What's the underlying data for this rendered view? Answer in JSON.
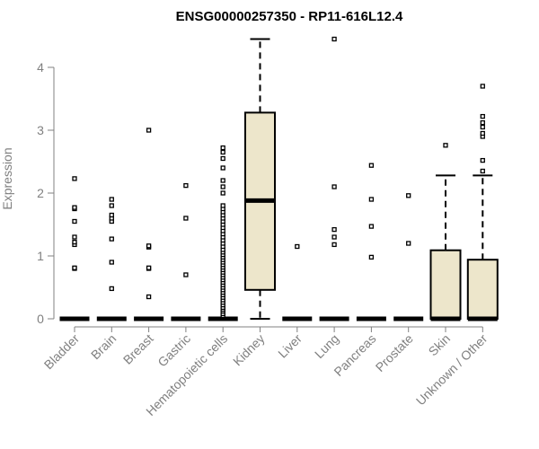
{
  "chart_data": {
    "type": "boxplot",
    "title": "ENSG00000257350 - RP11-616L12.4",
    "ylabel": "Expression",
    "xlabel": "",
    "ylim": [
      0,
      4.5
    ],
    "yticks": [
      0,
      1,
      2,
      3,
      4
    ],
    "box_color": "#ede6cb",
    "categories": [
      "Bladder",
      "Brain",
      "Breast",
      "Gastric",
      "Hematopoietic cells",
      "Kidney",
      "Liver",
      "Lung",
      "Pancreas",
      "Prostate",
      "Skin",
      "Unknown / Other"
    ],
    "boxes": [
      {
        "q1": 0,
        "median": 0,
        "q3": 0,
        "whisker_low": 0,
        "whisker_high": 0,
        "outliers": [
          0.8,
          0.81,
          1.18,
          1.22,
          1.3,
          1.55,
          1.75,
          1.77,
          2.23
        ]
      },
      {
        "q1": 0,
        "median": 0,
        "q3": 0,
        "whisker_low": 0,
        "whisker_high": 0,
        "outliers": [
          0.48,
          0.9,
          1.27,
          1.55,
          1.6,
          1.65,
          1.8,
          1.9
        ]
      },
      {
        "q1": 0,
        "median": 0,
        "q3": 0,
        "whisker_low": 0,
        "whisker_high": 0,
        "outliers": [
          0.35,
          0.8,
          0.81,
          1.14,
          1.16,
          3.0
        ]
      },
      {
        "q1": 0,
        "median": 0,
        "q3": 0,
        "whisker_low": 0,
        "whisker_high": 0,
        "outliers": [
          0.7,
          1.6,
          2.12
        ]
      },
      {
        "q1": 0,
        "median": 0,
        "q3": 0,
        "whisker_low": 0,
        "whisker_high": 0,
        "outliers": [
          0.05,
          0.08,
          0.12,
          0.15,
          0.18,
          0.22,
          0.26,
          0.3,
          0.34,
          0.38,
          0.42,
          0.46,
          0.5,
          0.54,
          0.58,
          0.62,
          0.66,
          0.7,
          0.74,
          0.78,
          0.82,
          0.86,
          0.9,
          0.94,
          0.98,
          1.02,
          1.06,
          1.1,
          1.15,
          1.2,
          1.25,
          1.3,
          1.35,
          1.4,
          1.45,
          1.5,
          1.55,
          1.6,
          1.65,
          1.7,
          1.75,
          1.8,
          2.0,
          2.1,
          2.2,
          2.4,
          2.55,
          2.65,
          2.72
        ]
      },
      {
        "q1": 0.46,
        "median": 1.88,
        "q3": 3.28,
        "whisker_low": 0,
        "whisker_high": 4.45,
        "outliers": []
      },
      {
        "q1": 0,
        "median": 0,
        "q3": 0,
        "whisker_low": 0,
        "whisker_high": 0,
        "outliers": [
          1.15
        ]
      },
      {
        "q1": 0,
        "median": 0,
        "q3": 0,
        "whisker_low": 0,
        "whisker_high": 0,
        "outliers": [
          1.18,
          1.3,
          1.42,
          2.1,
          4.45
        ]
      },
      {
        "q1": 0,
        "median": 0,
        "q3": 0,
        "whisker_low": 0,
        "whisker_high": 0,
        "outliers": [
          0.98,
          1.47,
          1.9,
          2.44
        ]
      },
      {
        "q1": 0,
        "median": 0,
        "q3": 0,
        "whisker_low": 0,
        "whisker_high": 0,
        "outliers": [
          1.2,
          1.96
        ]
      },
      {
        "q1": 0,
        "median": 0,
        "q3": 1.09,
        "whisker_low": 0,
        "whisker_high": 2.28,
        "outliers": [
          2.76
        ]
      },
      {
        "q1": 0,
        "median": 0,
        "q3": 0.94,
        "whisker_low": 0,
        "whisker_high": 2.28,
        "outliers": [
          2.35,
          2.52,
          2.9,
          2.95,
          3.05,
          3.12,
          3.22,
          3.7
        ]
      }
    ]
  }
}
